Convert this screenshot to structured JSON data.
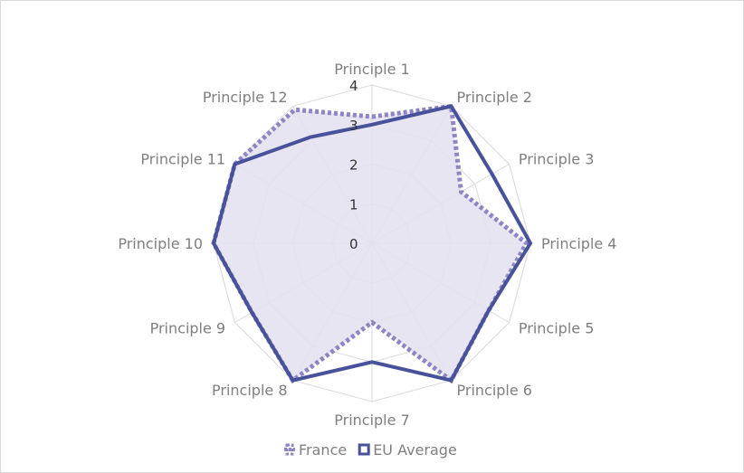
{
  "chart_data": {
    "type": "radar",
    "categories": [
      "Principle 1",
      "Principle 2",
      "Principle 3",
      "Principle 4",
      "Principle 5",
      "Principle 6",
      "Principle 7",
      "Principle 8",
      "Principle 9",
      "Principle 10",
      "Principle 11",
      "Principle 12"
    ],
    "series": [
      {
        "name": "France",
        "values": [
          3.2,
          4.0,
          2.6,
          3.9,
          3.4,
          4.0,
          2.0,
          4.0,
          3.5,
          4.0,
          4.0,
          3.9
        ],
        "color": "#8e86c4",
        "style": "dotted",
        "fill": "#e4e1f0"
      },
      {
        "name": "EU Average",
        "values": [
          3.0,
          4.0,
          3.5,
          4.0,
          3.4,
          4.0,
          3.0,
          4.0,
          3.5,
          4.0,
          4.0,
          3.1
        ],
        "color": "#47529b",
        "style": "solid"
      }
    ],
    "ticks": [
      "0",
      "1",
      "2",
      "3",
      "4"
    ],
    "rlim": [
      0,
      4
    ],
    "grid": true,
    "legend_position": "bottom"
  }
}
